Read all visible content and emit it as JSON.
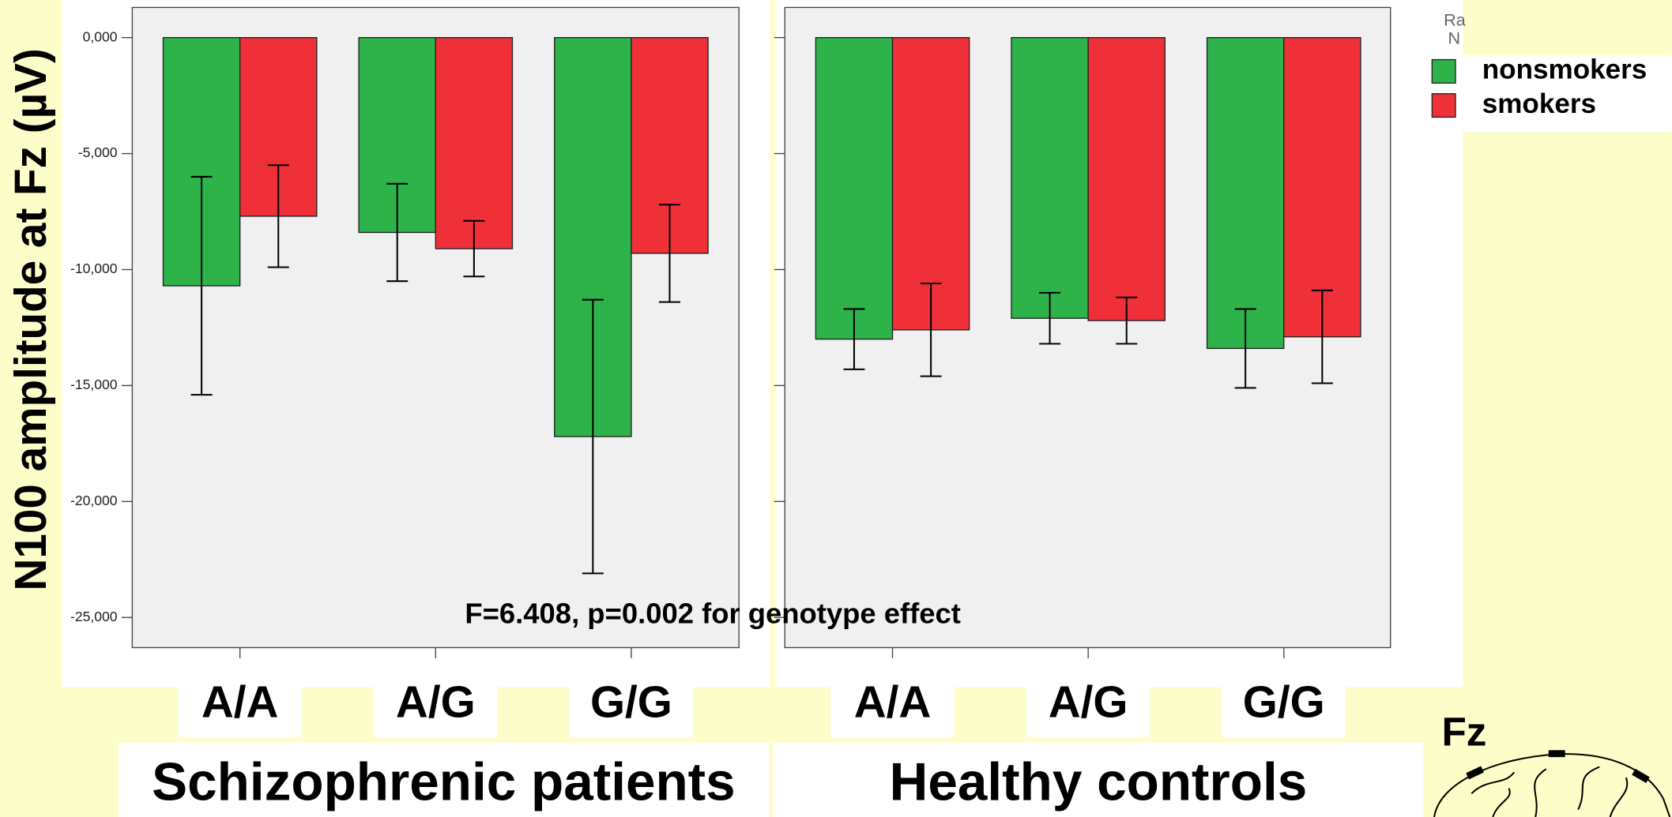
{
  "chart_data": [
    {
      "type": "bar",
      "x_label": "Schizophrenic patients",
      "y_label": "N100 amplitude at Fz (µV)",
      "annotation": "F=6.408, p=0.002 for genotype effect",
      "legend_title": [
        "Ra",
        "N"
      ],
      "categories": [
        "A/A",
        "A/G",
        "G/G"
      ],
      "series": [
        {
          "name": "nonsmokers",
          "color": "#2db34a",
          "values": [
            -10.7,
            -8.4,
            -17.2
          ],
          "errors": [
            4.7,
            2.1,
            5.9
          ]
        },
        {
          "name": "smokers",
          "color": "#ef3039",
          "values": [
            -7.7,
            -9.1,
            -9.3
          ],
          "errors": [
            2.2,
            1.2,
            2.1
          ]
        }
      ],
      "ylim": [
        -26.3,
        1.3
      ],
      "yticks": [
        {
          "value": 0,
          "label": "0,000"
        },
        {
          "value": -5,
          "label": "-5,000"
        },
        {
          "value": -10,
          "label": "-10,000"
        },
        {
          "value": -15,
          "label": "-15,000"
        },
        {
          "value": -20,
          "label": "-20,000"
        },
        {
          "value": -25,
          "label": "-25,000"
        }
      ]
    },
    {
      "type": "bar",
      "x_label": "Healthy controls",
      "inset_label": "Fz",
      "categories": [
        "A/A",
        "A/G",
        "G/G"
      ],
      "series": [
        {
          "color": "#2db34a",
          "values": [
            -13.0,
            -12.1,
            -13.4
          ],
          "errors": [
            1.3,
            1.1,
            1.7
          ]
        },
        {
          "color": "#ef3039",
          "values": [
            -12.6,
            -12.2,
            -12.9
          ],
          "errors": [
            2.0,
            1.0,
            2.0
          ]
        }
      ],
      "ylim": [
        -26.3,
        1.3
      ],
      "yticks": [
        0,
        -5,
        -10,
        -15,
        -20,
        -25
      ]
    }
  ]
}
